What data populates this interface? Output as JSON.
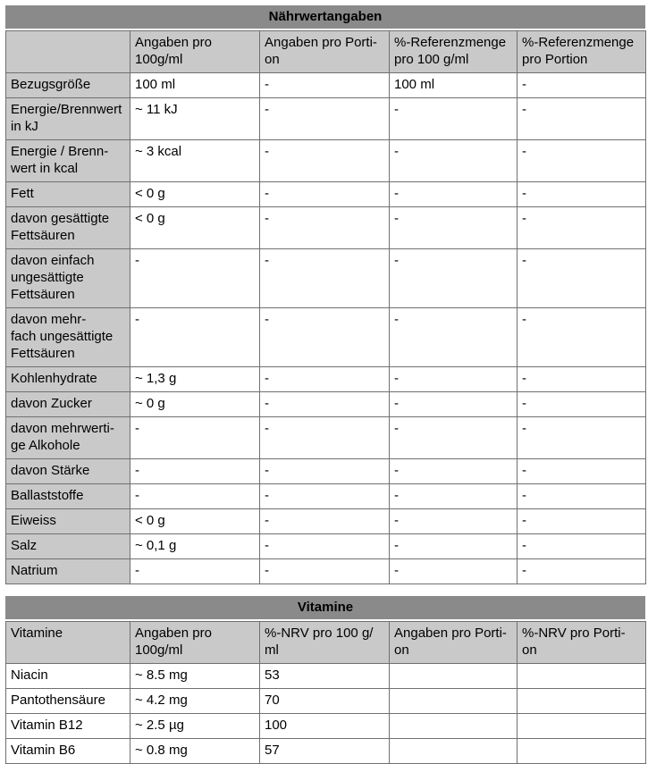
{
  "colors": {
    "title_bar_fill": "#8a8a8a",
    "header_fill": "#c9c9c9",
    "border": "#707070",
    "text": "#000000",
    "page_background": "#ffffff"
  },
  "nutrition_table": {
    "title": "Nährwertangaben",
    "headers": [
      "",
      "Angaben pro\n100g/ml",
      "Angaben pro Porti-\non",
      "%-Referenzmenge\npro 100 g/ml",
      "%-Referenzmenge\npro Portion"
    ],
    "rows": [
      {
        "label": "Bezugsgröße",
        "indent": false,
        "values": [
          "100 ml",
          "-",
          "100 ml",
          "-"
        ]
      },
      {
        "label": "Energie/Brennwert\nin kJ",
        "indent": false,
        "values": [
          "~ 11 kJ",
          "-",
          "-",
          "-"
        ]
      },
      {
        "label": "Energie / Brenn-\nwert in kcal",
        "indent": false,
        "values": [
          "~ 3 kcal",
          "-",
          "-",
          "-"
        ]
      },
      {
        "label": "Fett",
        "indent": false,
        "values": [
          "< 0 g",
          "-",
          "-",
          "-"
        ]
      },
      {
        "label": "davon gesättigte\nFettsäuren",
        "indent": true,
        "values": [
          "< 0 g",
          "-",
          "-",
          "-"
        ]
      },
      {
        "label": "davon einfach\nungesättigte\nFettsäuren",
        "indent": true,
        "values": [
          "-",
          "-",
          "-",
          "-"
        ]
      },
      {
        "label": "davon mehr-\nfach ungesättigte\nFettsäuren",
        "indent": true,
        "values": [
          "-",
          "-",
          "-",
          "-"
        ]
      },
      {
        "label": "Kohlenhydrate",
        "indent": false,
        "values": [
          "~ 1,3 g",
          "-",
          "-",
          "-"
        ]
      },
      {
        "label": "davon Zucker",
        "indent": true,
        "values": [
          "~ 0 g",
          "-",
          "-",
          "-"
        ]
      },
      {
        "label": "davon mehrwerti-\nge Alkohole",
        "indent": true,
        "values": [
          "-",
          "-",
          "-",
          "-"
        ]
      },
      {
        "label": "davon Stärke",
        "indent": true,
        "values": [
          "-",
          "-",
          "-",
          "-"
        ]
      },
      {
        "label": "Ballaststoffe",
        "indent": false,
        "values": [
          "-",
          "-",
          "-",
          "-"
        ]
      },
      {
        "label": "Eiweiss",
        "indent": false,
        "values": [
          "< 0 g",
          "-",
          "-",
          "-"
        ]
      },
      {
        "label": "Salz",
        "indent": false,
        "values": [
          "~ 0,1 g",
          "-",
          "-",
          "-"
        ]
      },
      {
        "label": "Natrium",
        "indent": false,
        "values": [
          "-",
          "-",
          "-",
          "-"
        ]
      }
    ]
  },
  "vitamins_table": {
    "title": "Vitamine",
    "headers": [
      "Vitamine",
      "Angaben pro\n100g/ml",
      "%-NRV pro 100 g/\nml",
      "Angaben pro Porti-\non",
      "%-NRV pro Porti-\non"
    ],
    "rows": [
      {
        "label": "Niacin",
        "indent": false,
        "values": [
          "~ 8.5 mg",
          "53",
          "",
          ""
        ]
      },
      {
        "label": "Pantothensäure",
        "indent": false,
        "values": [
          "~ 4.2 mg",
          "70",
          "",
          ""
        ]
      },
      {
        "label": "Vitamin B12",
        "indent": false,
        "values": [
          "~ 2.5 µg",
          "100",
          "",
          ""
        ]
      },
      {
        "label": "Vitamin B6",
        "indent": false,
        "values": [
          "~ 0.8 mg",
          "57",
          "",
          ""
        ]
      }
    ]
  }
}
